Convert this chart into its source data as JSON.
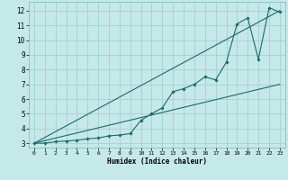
{
  "xlabel": "Humidex (Indice chaleur)",
  "x_ticks": [
    0,
    1,
    2,
    3,
    4,
    5,
    6,
    7,
    8,
    9,
    10,
    11,
    12,
    13,
    14,
    15,
    16,
    17,
    18,
    19,
    20,
    21,
    22,
    23
  ],
  "xlim": [
    -0.5,
    23.5
  ],
  "ylim": [
    2.7,
    12.6
  ],
  "y_ticks": [
    3,
    4,
    5,
    6,
    7,
    8,
    9,
    10,
    11,
    12
  ],
  "bg_color": "#c5e8e8",
  "grid_color": "#9ecece",
  "line_color": "#1a6b6b",
  "straight_line1_x": [
    0,
    23
  ],
  "straight_line1_y": [
    3.0,
    7.0
  ],
  "straight_line2_x": [
    0,
    23
  ],
  "straight_line2_y": [
    3.0,
    12.0
  ],
  "data_x": [
    0,
    1,
    2,
    3,
    4,
    5,
    6,
    7,
    8,
    9,
    10,
    11,
    12,
    13,
    14,
    15,
    16,
    17,
    18,
    19,
    20,
    21,
    22,
    23
  ],
  "data_y": [
    3.0,
    3.0,
    3.1,
    3.15,
    3.2,
    3.3,
    3.35,
    3.5,
    3.55,
    3.65,
    4.55,
    5.0,
    5.4,
    6.5,
    6.7,
    7.0,
    7.5,
    7.3,
    8.5,
    11.1,
    11.5,
    8.7,
    12.2,
    11.9
  ]
}
